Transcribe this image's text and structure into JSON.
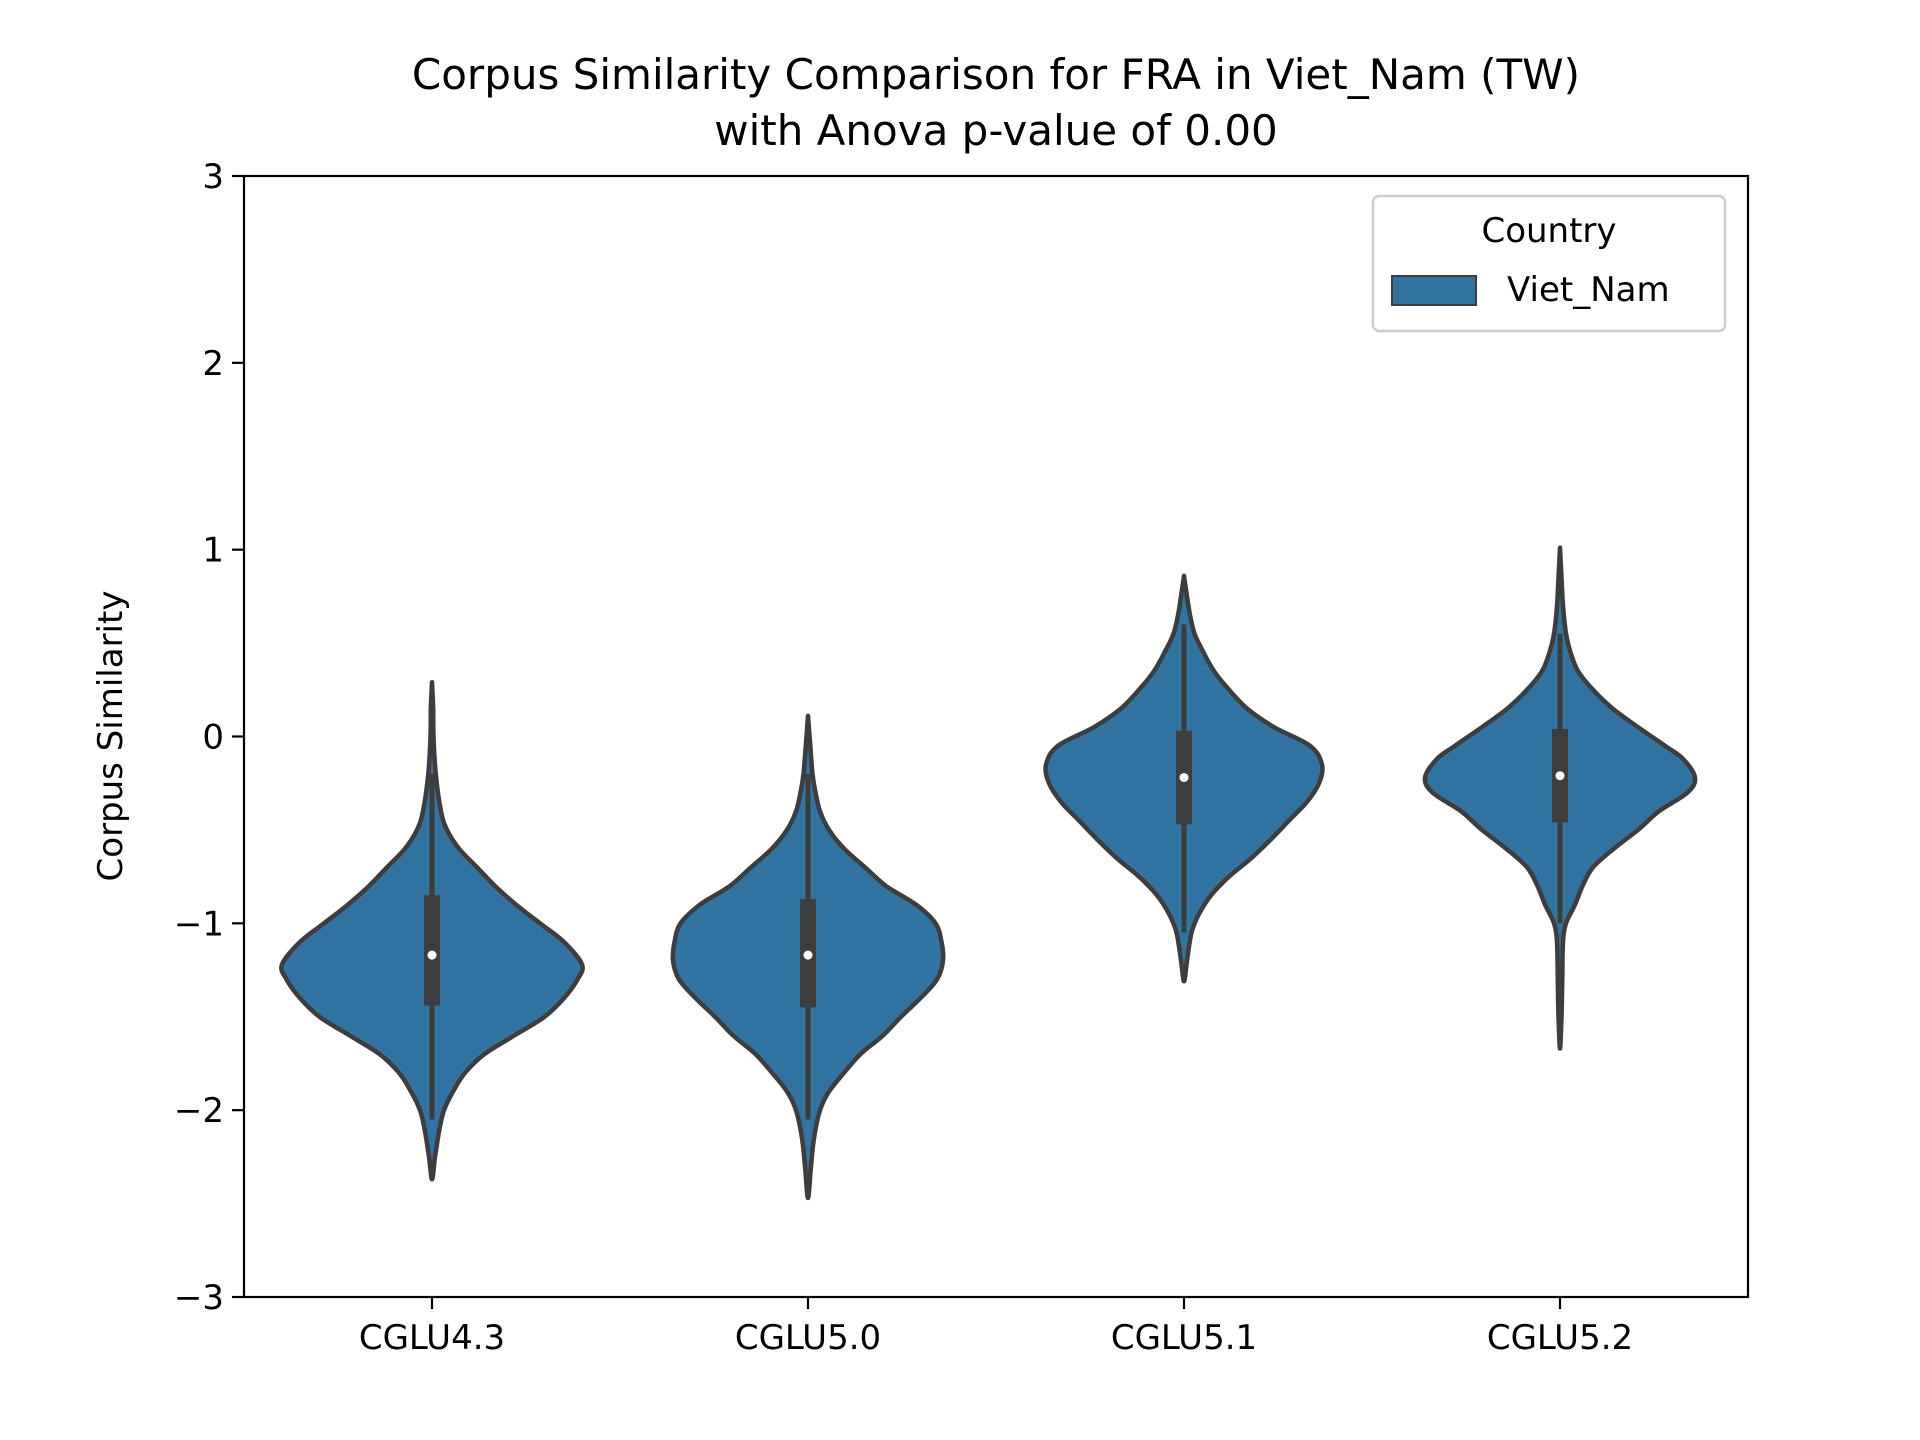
{
  "chart_data": {
    "type": "violin",
    "title_line1": "Corpus Similarity Comparison for FRA in Viet_Nam (TW)",
    "title_line2": "with Anova p-value of 0.00",
    "xlabel": "",
    "ylabel": "Corpus Similarity",
    "ylim": [
      -3,
      3
    ],
    "yticks": [
      3,
      2,
      1,
      0,
      -1,
      -2,
      -3
    ],
    "ytick_labels": [
      "3",
      "2",
      "1",
      "0",
      "−1",
      "−2",
      "−3"
    ],
    "categories": [
      "CGLU4.3",
      "CGLU5.0",
      "CGLU5.1",
      "CGLU5.2"
    ],
    "grid": false,
    "legend": {
      "title": "Country",
      "placement": "top-right",
      "entries": [
        "Viet_Nam"
      ]
    },
    "series": [
      {
        "name": "Viet_Nam",
        "color": "#3274a1",
        "violins": [
          {
            "category": "CGLU4.3",
            "min": -2.37,
            "max": 0.29,
            "median": -1.17,
            "q1": -1.44,
            "q3": -0.85,
            "whisker_low": -2.05,
            "whisker_high": -0.2,
            "profile": [
              [
                -2.37,
                0.0
              ],
              [
                -2.25,
                0.02
              ],
              [
                -2.1,
                0.05
              ],
              [
                -2.0,
                0.08
              ],
              [
                -1.9,
                0.14
              ],
              [
                -1.8,
                0.22
              ],
              [
                -1.7,
                0.35
              ],
              [
                -1.6,
                0.55
              ],
              [
                -1.5,
                0.75
              ],
              [
                -1.4,
                0.88
              ],
              [
                -1.3,
                0.97
              ],
              [
                -1.22,
                1.0
              ],
              [
                -1.1,
                0.88
              ],
              [
                -1.0,
                0.72
              ],
              [
                -0.9,
                0.56
              ],
              [
                -0.8,
                0.42
              ],
              [
                -0.7,
                0.3
              ],
              [
                -0.6,
                0.18
              ],
              [
                -0.5,
                0.1
              ],
              [
                -0.4,
                0.06
              ],
              [
                -0.2,
                0.025
              ],
              [
                0.0,
                0.01
              ],
              [
                0.15,
                0.008
              ],
              [
                0.29,
                0.0
              ]
            ]
          },
          {
            "category": "CGLU5.0",
            "min": -2.47,
            "max": 0.11,
            "median": -1.17,
            "q1": -1.45,
            "q3": -0.87,
            "whisker_low": -2.05,
            "whisker_high": -0.2,
            "profile": [
              [
                -2.47,
                0.0
              ],
              [
                -2.3,
                0.02
              ],
              [
                -2.15,
                0.04
              ],
              [
                -2.0,
                0.08
              ],
              [
                -1.9,
                0.14
              ],
              [
                -1.8,
                0.24
              ],
              [
                -1.7,
                0.35
              ],
              [
                -1.6,
                0.5
              ],
              [
                -1.5,
                0.62
              ],
              [
                -1.4,
                0.75
              ],
              [
                -1.3,
                0.86
              ],
              [
                -1.2,
                0.9
              ],
              [
                -1.1,
                0.89
              ],
              [
                -1.0,
                0.85
              ],
              [
                -0.9,
                0.72
              ],
              [
                -0.8,
                0.52
              ],
              [
                -0.7,
                0.38
              ],
              [
                -0.6,
                0.24
              ],
              [
                -0.5,
                0.14
              ],
              [
                -0.4,
                0.08
              ],
              [
                -0.3,
                0.05
              ],
              [
                -0.2,
                0.03
              ],
              [
                -0.05,
                0.015
              ],
              [
                0.11,
                0.0
              ]
            ]
          },
          {
            "category": "CGLU5.1",
            "min": -1.31,
            "max": 0.86,
            "median": -0.22,
            "q1": -0.47,
            "q3": 0.03,
            "whisker_low": -1.05,
            "whisker_high": 0.6,
            "profile": [
              [
                -1.31,
                0.0
              ],
              [
                -1.2,
                0.02
              ],
              [
                -1.05,
                0.05
              ],
              [
                -0.95,
                0.1
              ],
              [
                -0.85,
                0.18
              ],
              [
                -0.75,
                0.3
              ],
              [
                -0.65,
                0.45
              ],
              [
                -0.55,
                0.58
              ],
              [
                -0.45,
                0.7
              ],
              [
                -0.35,
                0.82
              ],
              [
                -0.25,
                0.9
              ],
              [
                -0.15,
                0.92
              ],
              [
                -0.05,
                0.84
              ],
              [
                0.05,
                0.6
              ],
              [
                0.15,
                0.42
              ],
              [
                0.25,
                0.3
              ],
              [
                0.35,
                0.2
              ],
              [
                0.45,
                0.13
              ],
              [
                0.55,
                0.07
              ],
              [
                0.65,
                0.04
              ],
              [
                0.75,
                0.02
              ],
              [
                0.86,
                0.0
              ]
            ]
          },
          {
            "category": "CGLU5.2",
            "min": -1.67,
            "max": 1.01,
            "median": -0.21,
            "q1": -0.46,
            "q3": 0.04,
            "whisker_low": -1.0,
            "whisker_high": 0.55,
            "profile": [
              [
                -1.67,
                0.0
              ],
              [
                -1.5,
                0.01
              ],
              [
                -1.3,
                0.015
              ],
              [
                -1.1,
                0.02
              ],
              [
                -1.0,
                0.04
              ],
              [
                -0.9,
                0.1
              ],
              [
                -0.8,
                0.15
              ],
              [
                -0.7,
                0.22
              ],
              [
                -0.6,
                0.36
              ],
              [
                -0.5,
                0.52
              ],
              [
                -0.4,
                0.66
              ],
              [
                -0.3,
                0.85
              ],
              [
                -0.22,
                0.9
              ],
              [
                -0.12,
                0.82
              ],
              [
                -0.05,
                0.7
              ],
              [
                0.05,
                0.52
              ],
              [
                0.15,
                0.35
              ],
              [
                0.25,
                0.22
              ],
              [
                0.35,
                0.12
              ],
              [
                0.45,
                0.07
              ],
              [
                0.55,
                0.04
              ],
              [
                0.7,
                0.02
              ],
              [
                0.85,
                0.01
              ],
              [
                1.01,
                0.0
              ]
            ]
          }
        ]
      }
    ]
  }
}
